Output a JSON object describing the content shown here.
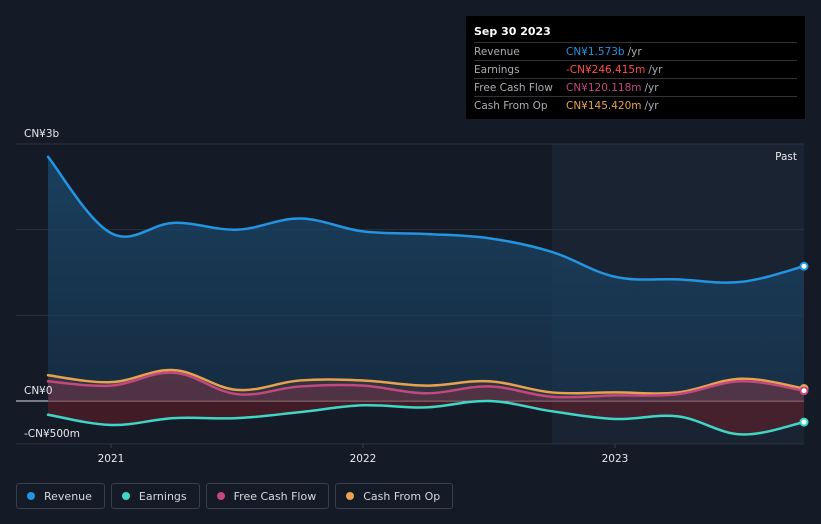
{
  "chart_data": {
    "type": "area",
    "title": "",
    "currency_prefix": "CN¥",
    "ylim": [
      -500,
      3000
    ],
    "y_tick_labels": [
      {
        "value": 3000,
        "label": "CN¥3b"
      },
      {
        "value": 0,
        "label": "CN¥0"
      },
      {
        "value": -500,
        "label": "-CN¥500m"
      }
    ],
    "x_range": [
      2020.75,
      2023.75
    ],
    "x_tick_labels": [
      {
        "value": 2021.0,
        "label": "2021"
      },
      {
        "value": 2022.0,
        "label": "2022"
      },
      {
        "value": 2023.0,
        "label": "2023"
      }
    ],
    "past_label": "Past",
    "past_region_start": 2022.75,
    "series": [
      {
        "name": "Revenue",
        "color": "#2394df",
        "x": [
          2020.75,
          2021.0,
          2021.25,
          2021.5,
          2021.75,
          2022.0,
          2022.25,
          2022.5,
          2022.75,
          2023.0,
          2023.25,
          2023.5,
          2023.75
        ],
        "values": [
          2850,
          1960,
          2080,
          2000,
          2130,
          1980,
          1950,
          1900,
          1740,
          1450,
          1420,
          1390,
          1573
        ]
      },
      {
        "name": "Earnings",
        "color": "#3fd6c6",
        "x": [
          2020.75,
          2021.0,
          2021.25,
          2021.5,
          2021.75,
          2022.0,
          2022.25,
          2022.5,
          2022.75,
          2023.0,
          2023.25,
          2023.5,
          2023.75
        ],
        "values": [
          -160,
          -280,
          -200,
          -200,
          -130,
          -50,
          -75,
          0,
          -120,
          -210,
          -180,
          -390,
          -246.415
        ]
      },
      {
        "name": "Free Cash Flow",
        "color": "#c2487f",
        "x": [
          2020.75,
          2021.0,
          2021.25,
          2021.5,
          2021.75,
          2022.0,
          2022.25,
          2022.5,
          2022.75,
          2023.0,
          2023.25,
          2023.5,
          2023.75
        ],
        "values": [
          230,
          180,
          330,
          80,
          170,
          180,
          90,
          170,
          50,
          65,
          80,
          230,
          120.118
        ]
      },
      {
        "name": "Cash From Op",
        "color": "#e8a24f",
        "x": [
          2020.75,
          2021.0,
          2021.25,
          2021.5,
          2021.75,
          2022.0,
          2022.25,
          2022.5,
          2022.75,
          2023.0,
          2023.25,
          2023.5,
          2023.75
        ],
        "values": [
          300,
          220,
          360,
          130,
          240,
          240,
          180,
          230,
          100,
          100,
          100,
          260,
          145.42
        ]
      }
    ]
  },
  "tooltip": {
    "date": "Sep 30 2023",
    "rows": [
      {
        "label": "Revenue",
        "value": "CN¥1.573b",
        "unit": "/yr",
        "color": "#2394df"
      },
      {
        "label": "Earnings",
        "value": "-CN¥246.415m",
        "unit": "/yr",
        "color": "#ff4d4d"
      },
      {
        "label": "Free Cash Flow",
        "value": "CN¥120.118m",
        "unit": "/yr",
        "color": "#c2487f"
      },
      {
        "label": "Cash From Op",
        "value": "CN¥145.420m",
        "unit": "/yr",
        "color": "#e8a24f"
      }
    ]
  },
  "legend": [
    {
      "label": "Revenue",
      "color": "#2394df"
    },
    {
      "label": "Earnings",
      "color": "#3fd6c6"
    },
    {
      "label": "Free Cash Flow",
      "color": "#c2487f"
    },
    {
      "label": "Cash From Op",
      "color": "#e8a24f"
    }
  ]
}
